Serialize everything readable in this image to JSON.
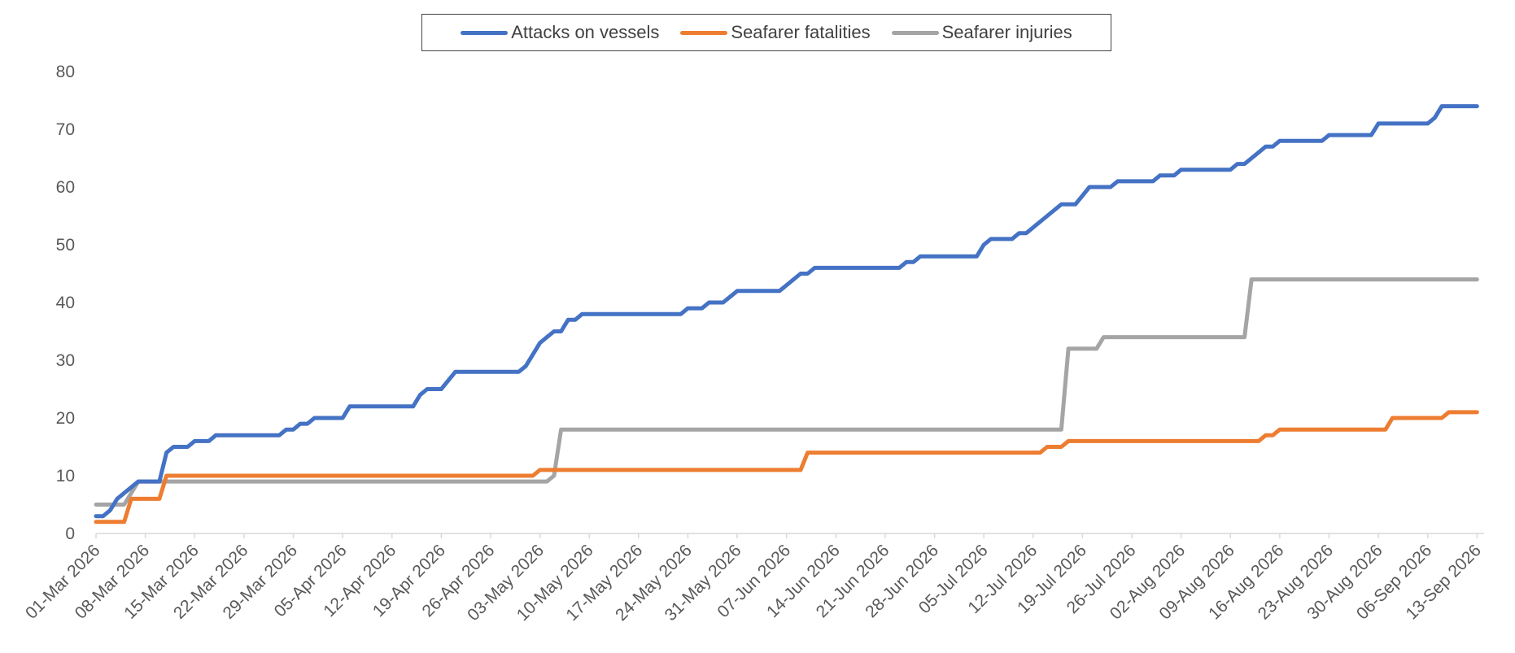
{
  "chart_data": {
    "type": "line",
    "title": "",
    "xlabel": "",
    "ylabel": "",
    "ylim": [
      0,
      80
    ],
    "yticks": [
      0,
      10,
      20,
      30,
      40,
      50,
      60,
      70,
      80
    ],
    "x_range": [
      "01-Mar 2026",
      "14-Sep 2026"
    ],
    "x_ticks": [
      "01-Mar 2026",
      "08-Mar 2026",
      "15-Mar 2026",
      "22-Mar 2026",
      "29-Mar 2026",
      "05-Apr 2026",
      "12-Apr 2026",
      "19-Apr 2026",
      "26-Apr 2026",
      "03-May 2026",
      "10-May 2026",
      "17-May 2026",
      "24-May 2026",
      "31-May 2026",
      "07-Jun 2026",
      "14-Jun 2026",
      "21-Jun 2026",
      "28-Jun 2026",
      "05-Jul 2026",
      "12-Jul 2026",
      "19-Jul 2026",
      "26-Jul 2026",
      "02-Aug 2026",
      "09-Aug 2026",
      "16-Aug 2026",
      "23-Aug 2026",
      "30-Aug 2026",
      "06-Sep 2026",
      "13-Sep 2026"
    ],
    "grid": false,
    "legend_position": "top-center",
    "series": [
      {
        "name": "Attacks on vessels",
        "color": "#4472C4",
        "points": [
          [
            "01-Mar 2026",
            3
          ],
          [
            "02-Mar 2026",
            3
          ],
          [
            "03-Mar 2026",
            4
          ],
          [
            "04-Mar 2026",
            6
          ],
          [
            "05-Mar 2026",
            7
          ],
          [
            "06-Mar 2026",
            8
          ],
          [
            "07-Mar 2026",
            9
          ],
          [
            "08-Mar 2026",
            9
          ],
          [
            "10-Mar 2026",
            9
          ],
          [
            "11-Mar 2026",
            14
          ],
          [
            "12-Mar 2026",
            15
          ],
          [
            "14-Mar 2026",
            15
          ],
          [
            "15-Mar 2026",
            16
          ],
          [
            "17-Mar 2026",
            16
          ],
          [
            "18-Mar 2026",
            17
          ],
          [
            "27-Mar 2026",
            17
          ],
          [
            "28-Mar 2026",
            18
          ],
          [
            "29-Mar 2026",
            18
          ],
          [
            "30-Mar 2026",
            19
          ],
          [
            "31-Mar 2026",
            19
          ],
          [
            "01-Apr 2026",
            20
          ],
          [
            "05-Apr 2026",
            20
          ],
          [
            "06-Apr 2026",
            22
          ],
          [
            "15-Apr 2026",
            22
          ],
          [
            "16-Apr 2026",
            24
          ],
          [
            "17-Apr 2026",
            25
          ],
          [
            "19-Apr 2026",
            25
          ],
          [
            "21-Apr 2026",
            28
          ],
          [
            "30-Apr 2026",
            28
          ],
          [
            "01-May 2026",
            29
          ],
          [
            "02-May 2026",
            31
          ],
          [
            "03-May 2026",
            33
          ],
          [
            "04-May 2026",
            34
          ],
          [
            "05-May 2026",
            35
          ],
          [
            "06-May 2026",
            35
          ],
          [
            "07-May 2026",
            37
          ],
          [
            "08-May 2026",
            37
          ],
          [
            "09-May 2026",
            38
          ],
          [
            "23-May 2026",
            38
          ],
          [
            "24-May 2026",
            39
          ],
          [
            "26-May 2026",
            39
          ],
          [
            "27-May 2026",
            40
          ],
          [
            "29-May 2026",
            40
          ],
          [
            "31-May 2026",
            42
          ],
          [
            "06-Jun 2026",
            42
          ],
          [
            "07-Jun 2026",
            43
          ],
          [
            "09-Jun 2026",
            45
          ],
          [
            "10-Jun 2026",
            45
          ],
          [
            "11-Jun 2026",
            46
          ],
          [
            "23-Jun 2026",
            46
          ],
          [
            "24-Jun 2026",
            47
          ],
          [
            "25-Jun 2026",
            47
          ],
          [
            "26-Jun 2026",
            48
          ],
          [
            "04-Jul 2026",
            48
          ],
          [
            "05-Jul 2026",
            50
          ],
          [
            "06-Jul 2026",
            51
          ],
          [
            "09-Jul 2026",
            51
          ],
          [
            "10-Jul 2026",
            52
          ],
          [
            "11-Jul 2026",
            52
          ],
          [
            "12-Jul 2026",
            53
          ],
          [
            "14-Jul 2026",
            55
          ],
          [
            "16-Jul 2026",
            57
          ],
          [
            "18-Jul 2026",
            57
          ],
          [
            "20-Jul 2026",
            60
          ],
          [
            "23-Jul 2026",
            60
          ],
          [
            "24-Jul 2026",
            61
          ],
          [
            "29-Jul 2026",
            61
          ],
          [
            "30-Jul 2026",
            62
          ],
          [
            "01-Aug 2026",
            62
          ],
          [
            "02-Aug 2026",
            63
          ],
          [
            "09-Aug 2026",
            63
          ],
          [
            "10-Aug 2026",
            64
          ],
          [
            "11-Aug 2026",
            64
          ],
          [
            "13-Aug 2026",
            66
          ],
          [
            "14-Aug 2026",
            67
          ],
          [
            "15-Aug 2026",
            67
          ],
          [
            "16-Aug 2026",
            68
          ],
          [
            "22-Aug 2026",
            68
          ],
          [
            "23-Aug 2026",
            69
          ],
          [
            "29-Aug 2026",
            69
          ],
          [
            "30-Aug 2026",
            71
          ],
          [
            "06-Sep 2026",
            71
          ],
          [
            "07-Sep 2026",
            72
          ],
          [
            "08-Sep 2026",
            74
          ],
          [
            "13-Sep 2026",
            74
          ]
        ]
      },
      {
        "name": "Seafarer fatalities",
        "color": "#ED7D31",
        "points": [
          [
            "01-Mar 2026",
            2
          ],
          [
            "05-Mar 2026",
            2
          ],
          [
            "06-Mar 2026",
            6
          ],
          [
            "10-Mar 2026",
            6
          ],
          [
            "11-Mar 2026",
            10
          ],
          [
            "02-May 2026",
            10
          ],
          [
            "03-May 2026",
            11
          ],
          [
            "09-Jun 2026",
            11
          ],
          [
            "10-Jun 2026",
            14
          ],
          [
            "13-Jul 2026",
            14
          ],
          [
            "14-Jul 2026",
            15
          ],
          [
            "16-Jul 2026",
            15
          ],
          [
            "17-Jul 2026",
            16
          ],
          [
            "13-Aug 2026",
            16
          ],
          [
            "14-Aug 2026",
            17
          ],
          [
            "15-Aug 2026",
            17
          ],
          [
            "16-Aug 2026",
            18
          ],
          [
            "31-Aug 2026",
            18
          ],
          [
            "01-Sep 2026",
            20
          ],
          [
            "08-Sep 2026",
            20
          ],
          [
            "09-Sep 2026",
            21
          ],
          [
            "13-Sep 2026",
            21
          ]
        ]
      },
      {
        "name": "Seafarer injuries",
        "color": "#A5A5A5",
        "points": [
          [
            "01-Mar 2026",
            5
          ],
          [
            "05-Mar 2026",
            5
          ],
          [
            "06-Mar 2026",
            7
          ],
          [
            "07-Mar 2026",
            9
          ],
          [
            "04-May 2026",
            9
          ],
          [
            "05-May 2026",
            10
          ],
          [
            "06-May 2026",
            18
          ],
          [
            "16-Jul 2026",
            18
          ],
          [
            "17-Jul 2026",
            32
          ],
          [
            "21-Jul 2026",
            32
          ],
          [
            "22-Jul 2026",
            34
          ],
          [
            "11-Aug 2026",
            34
          ],
          [
            "12-Aug 2026",
            44
          ],
          [
            "13-Sep 2026",
            44
          ]
        ]
      }
    ]
  }
}
